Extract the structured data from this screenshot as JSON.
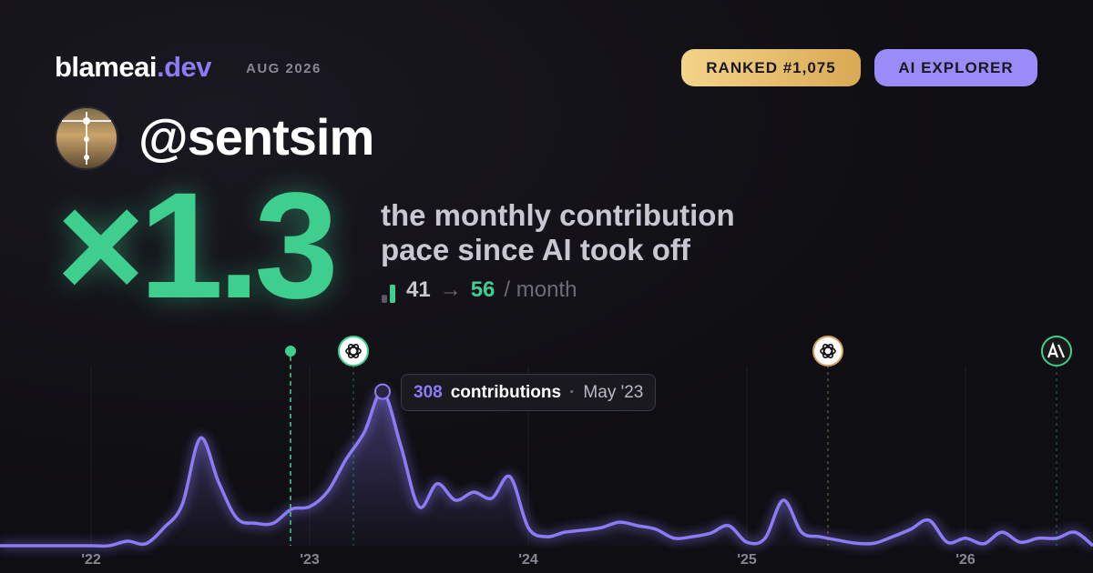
{
  "header": {
    "brand": "blameai",
    "brand_suffix": ".dev",
    "date": "AUG 2026",
    "rank_badge": "RANKED #1,075",
    "role_badge": "AI EXPLORER"
  },
  "profile": {
    "handle": "@sentsim"
  },
  "stat": {
    "multiplier": "×1.3",
    "caption": "the monthly contribution pace since AI took off",
    "before": 41,
    "arrow": "→",
    "after": 56,
    "unit": "/ month"
  },
  "chart_data": {
    "type": "line",
    "categories": [
      null,
      null,
      null,
      null,
      null,
      "'22",
      null,
      null,
      null,
      null,
      null,
      null,
      null,
      null,
      null,
      null,
      null,
      "'23",
      null,
      null,
      null,
      null,
      null,
      null,
      null,
      null,
      null,
      null,
      null,
      "'24",
      null,
      null,
      null,
      null,
      null,
      null,
      null,
      null,
      null,
      null,
      null,
      "'25",
      null,
      null,
      null,
      null,
      null,
      null,
      null,
      null,
      null,
      null,
      null,
      "'26",
      null,
      null,
      null,
      null,
      null,
      null,
      null
    ],
    "series": [
      {
        "name": "contributions",
        "color": "#8b7cf6",
        "values": [
          0,
          0,
          0,
          0,
          0,
          0,
          0,
          9,
          4,
          36,
          82,
          215,
          127,
          55,
          45,
          45,
          73,
          78,
          109,
          173,
          227,
          308,
          200,
          78,
          124,
          91,
          107,
          95,
          138,
          36,
          18,
          27,
          31,
          36,
          47,
          40,
          33,
          15,
          18,
          25,
          40,
          7,
          15,
          91,
          27,
          18,
          11,
          5,
          5,
          18,
          33,
          51,
          7,
          15,
          4,
          27,
          7,
          15,
          15,
          27,
          0
        ]
      }
    ],
    "ylim": [
      0,
      360
    ],
    "tooltip_date": "May '23"
  }
}
